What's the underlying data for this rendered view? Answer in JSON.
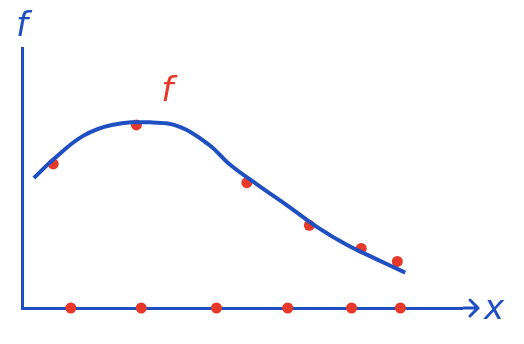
{
  "chart_data": {
    "type": "line",
    "x_label": "x",
    "y_label": "f",
    "xlim": [
      0,
      10
    ],
    "ylim": [
      0,
      10
    ],
    "tick_labels": false,
    "grid": false,
    "annotations": [
      {
        "text": "f",
        "x": 3.3,
        "y": 8.3,
        "color": "#e8382a"
      }
    ],
    "series": [
      {
        "type": "line",
        "color": "#1f4fc1",
        "marker": "none",
        "line_style": "solid",
        "x": [
          0.27,
          0.71,
          1.38,
          2.04,
          2.93,
          3.6,
          4.27,
          4.71,
          5.38,
          6.04,
          6.71,
          7.38,
          8.04,
          8.71
        ],
        "values": [
          5.0,
          5.71,
          6.61,
          7.04,
          7.14,
          6.96,
          6.25,
          5.54,
          4.71,
          3.93,
          3.11,
          2.43,
          1.89,
          1.36
        ]
      },
      {
        "type": "scatter",
        "color": "#e8382a",
        "marker": "circle",
        "x": [
          0.71,
          2.6,
          5.11,
          6.53,
          7.71,
          8.53
        ],
        "values": [
          5.54,
          7.04,
          4.82,
          3.18,
          2.29,
          1.79
        ]
      },
      {
        "type": "scatter",
        "color": "#e8382a",
        "marker": "circle",
        "x": [
          1.11,
          2.71,
          4.42,
          6.04,
          7.49,
          8.6
        ],
        "values": [
          0,
          0,
          0,
          0,
          0,
          0
        ]
      }
    ]
  }
}
